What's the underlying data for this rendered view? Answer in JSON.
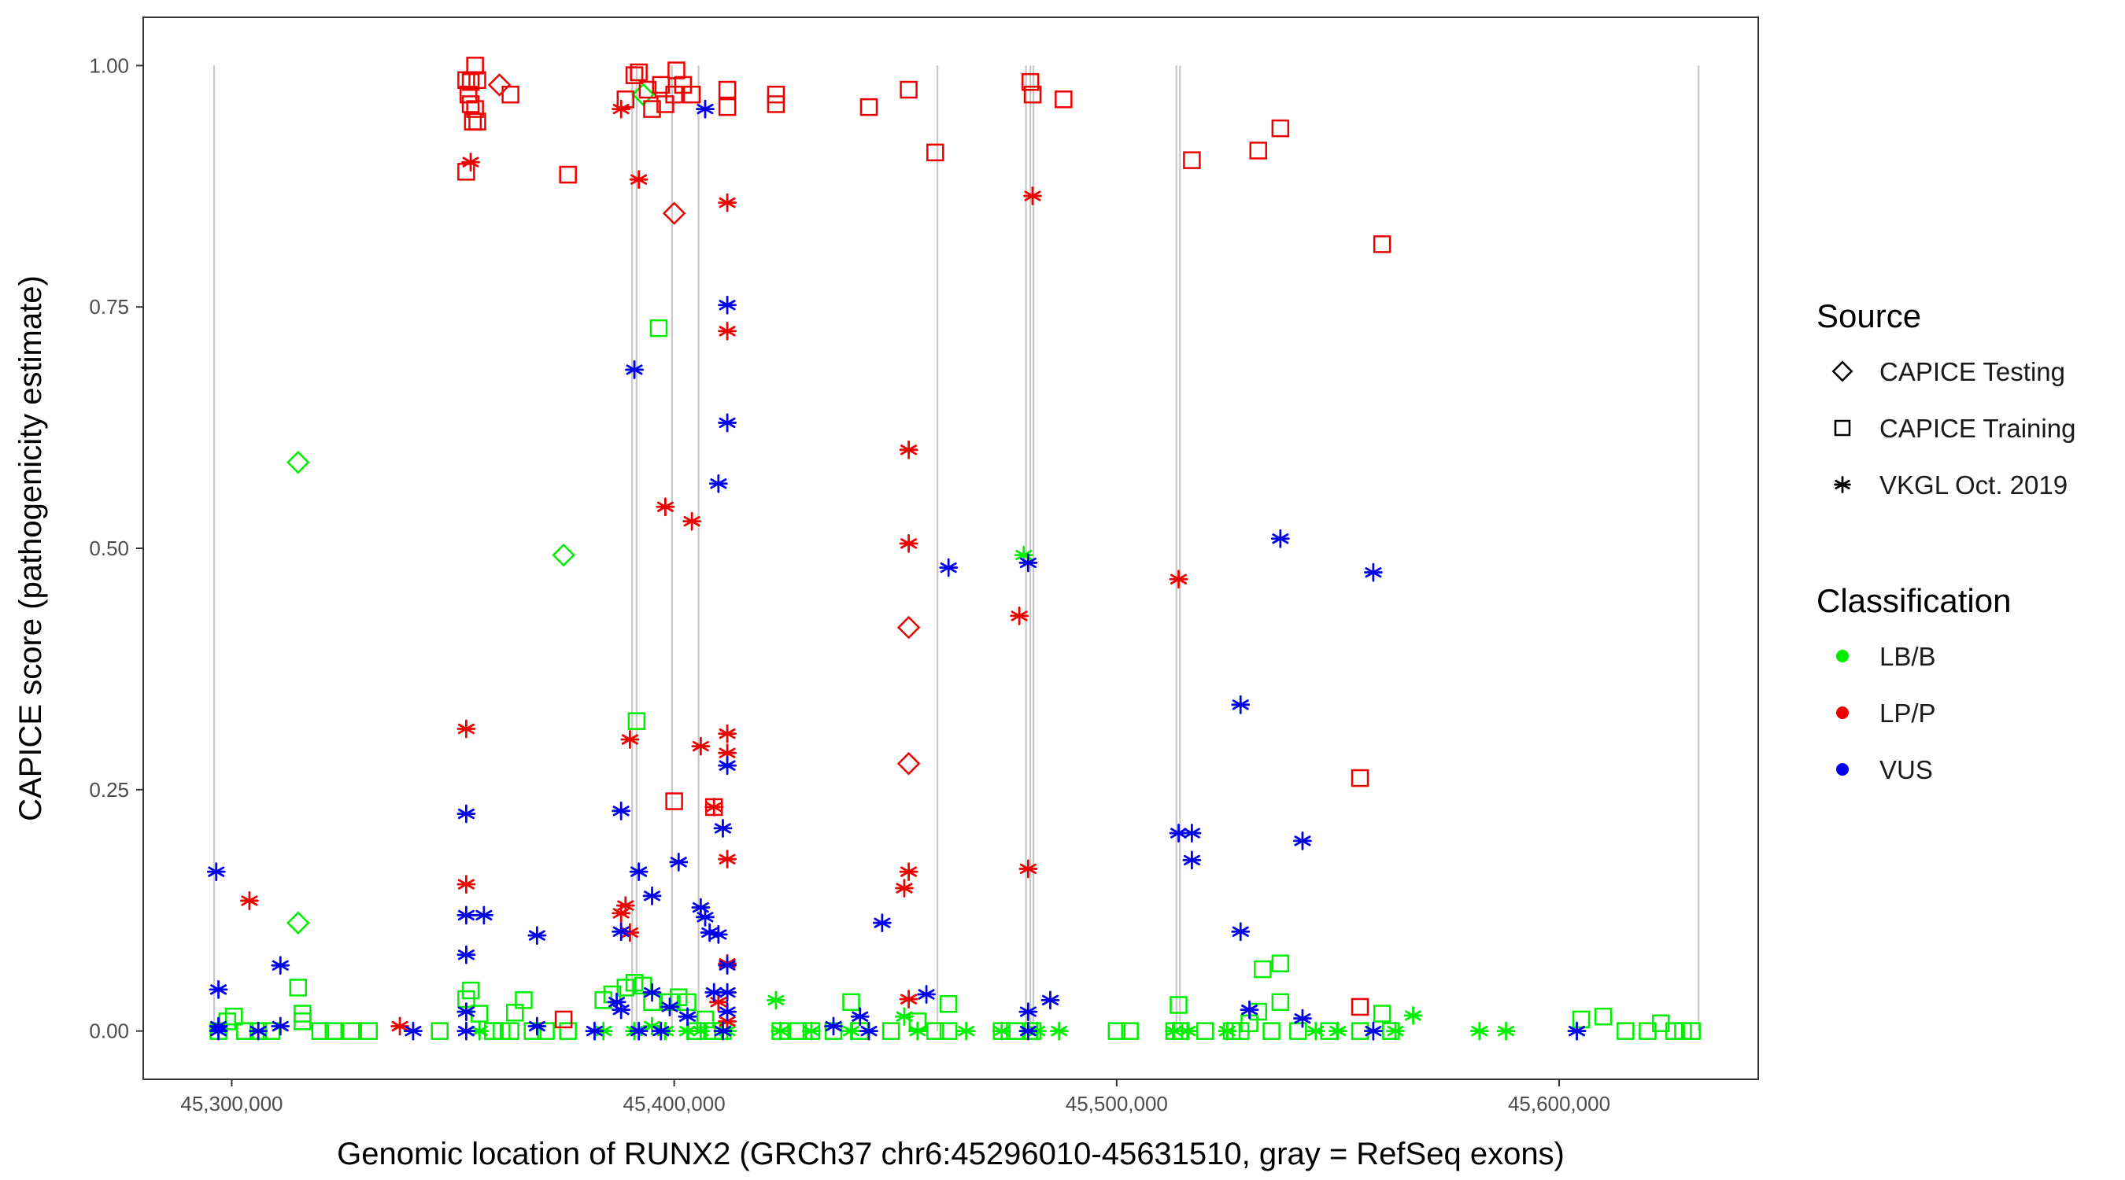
{
  "chart_data": {
    "type": "scatter",
    "title": "",
    "xlabel": "Genomic location of RUNX2 (GRCh37 chr6:45296010-45631510, gray = RefSeq exons)",
    "ylabel": "CAPICE score (pathogenicity estimate)",
    "xlim": [
      45280000,
      45645000
    ],
    "ylim": [
      -0.05,
      1.05
    ],
    "x_ticks": [
      45300000,
      45400000,
      45500000,
      45600000
    ],
    "x_tick_labels": [
      "45,300,000",
      "45,400,000",
      "45,500,000",
      "45,600,000"
    ],
    "y_ticks": [
      0,
      0.25,
      0.5,
      0.75,
      1.0
    ],
    "y_tick_labels": [
      "0.00",
      "0.25",
      "0.50",
      "0.75",
      "1.00"
    ],
    "grid": false,
    "exons": [
      45296010,
      45390500,
      45391500,
      45399500,
      45405500,
      45459500,
      45479500,
      45480500,
      45481200,
      45513500,
      45514300,
      45631510
    ],
    "legend": {
      "source": {
        "title": "Source",
        "entries": [
          {
            "label": "CAPICE Testing",
            "shape": "diamond"
          },
          {
            "label": "CAPICE Training",
            "shape": "square"
          },
          {
            "label": "VKGL Oct. 2019",
            "shape": "asterisk"
          }
        ]
      },
      "classification": {
        "title": "Classification",
        "entries": [
          {
            "label": "LB/B",
            "color": "#00ee00"
          },
          {
            "label": "LP/P",
            "color": "#ee0000"
          },
          {
            "label": "VUS",
            "color": "#0000ee"
          }
        ]
      }
    },
    "series": [
      {
        "source": "CAPICE Testing",
        "shape": "diamond",
        "classification": "LB/B",
        "points": [
          [
            45315000,
            0.589
          ],
          [
            45315000,
            0.112
          ],
          [
            45375000,
            0.493
          ],
          [
            45393000,
            0.97
          ]
        ]
      },
      {
        "source": "CAPICE Testing",
        "shape": "diamond",
        "classification": "LP/P",
        "points": [
          [
            45360500,
            0.98
          ],
          [
            45400000,
            0.847
          ],
          [
            45453000,
            0.418
          ],
          [
            45453000,
            0.277
          ]
        ]
      },
      {
        "source": "CAPICE Training",
        "shape": "square",
        "classification": "LB/B",
        "points": [
          [
            45297000,
            0.0
          ],
          [
            45299000,
            0.01
          ],
          [
            45300500,
            0.015
          ],
          [
            45303000,
            0.0
          ],
          [
            45306000,
            0.0
          ],
          [
            45309000,
            0.0
          ],
          [
            45315000,
            0.045
          ],
          [
            45316000,
            0.018
          ],
          [
            45316000,
            0.01
          ],
          [
            45320000,
            0.0
          ],
          [
            45323000,
            0.0
          ],
          [
            45327000,
            0.0
          ],
          [
            45331000,
            0.0
          ],
          [
            45347000,
            0.0
          ],
          [
            45353000,
            0.033
          ],
          [
            45354000,
            0.042
          ],
          [
            45356000,
            0.018
          ],
          [
            45359000,
            0.0
          ],
          [
            45361000,
            0.0
          ],
          [
            45363000,
            0.0
          ],
          [
            45364000,
            0.019
          ],
          [
            45366000,
            0.032
          ],
          [
            45368000,
            0.0
          ],
          [
            45371000,
            0.0
          ],
          [
            45376000,
            0.0
          ],
          [
            45384000,
            0.032
          ],
          [
            45386000,
            0.038
          ],
          [
            45389000,
            0.045
          ],
          [
            45391000,
            0.05
          ],
          [
            45391500,
            0.321
          ],
          [
            45393000,
            0.047
          ],
          [
            45395000,
            0.03
          ],
          [
            45396500,
            0.728
          ],
          [
            45399000,
            0.03
          ],
          [
            45401000,
            0.035
          ],
          [
            45403000,
            0.03
          ],
          [
            45405000,
            0.0
          ],
          [
            45407000,
            0.012
          ],
          [
            45409000,
            0.0
          ],
          [
            45411000,
            0.0
          ],
          [
            45424000,
            0.0
          ],
          [
            45428000,
            0.0
          ],
          [
            45431000,
            0.0
          ],
          [
            45436000,
            0.0
          ],
          [
            45440000,
            0.03
          ],
          [
            45442000,
            0.0
          ],
          [
            45449000,
            0.0
          ],
          [
            45455000,
            0.01
          ],
          [
            45459000,
            0.0
          ],
          [
            45462000,
            0.0
          ],
          [
            45462000,
            0.028
          ],
          [
            45474000,
            0.0
          ],
          [
            45477000,
            0.0
          ],
          [
            45481000,
            0.0
          ],
          [
            45500000,
            0.0
          ],
          [
            45503000,
            0.0
          ],
          [
            45513000,
            0.0
          ],
          [
            45514000,
            0.027
          ],
          [
            45514500,
            0.0
          ],
          [
            45520000,
            0.0
          ],
          [
            45526000,
            0.0
          ],
          [
            45528000,
            0.0
          ],
          [
            45530000,
            0.008
          ],
          [
            45532000,
            0.02
          ],
          [
            45533000,
            0.064
          ],
          [
            45535000,
            0.0
          ],
          [
            45537000,
            0.07
          ],
          [
            45537000,
            0.03
          ],
          [
            45541000,
            0.0
          ],
          [
            45548000,
            0.0
          ],
          [
            45555000,
            0.0
          ],
          [
            45560000,
            0.018
          ],
          [
            45562000,
            0.0
          ],
          [
            45605000,
            0.012
          ],
          [
            45610000,
            0.015
          ],
          [
            45615000,
            0.0
          ],
          [
            45620000,
            0.0
          ],
          [
            45623000,
            0.008
          ],
          [
            45626000,
            0.0
          ],
          [
            45628000,
            0.0
          ],
          [
            45630000,
            0.0
          ]
        ]
      },
      {
        "source": "CAPICE Training",
        "shape": "square",
        "classification": "LP/P",
        "points": [
          [
            45353000,
            0.985
          ],
          [
            45354000,
            0.983
          ],
          [
            45355000,
            1.0
          ],
          [
            45355500,
            0.985
          ],
          [
            45353500,
            0.97
          ],
          [
            45354000,
            0.96
          ],
          [
            45355000,
            0.955
          ],
          [
            45354500,
            0.942
          ],
          [
            45355500,
            0.942
          ],
          [
            45353000,
            0.89
          ],
          [
            45363000,
            0.97
          ],
          [
            45376000,
            0.887
          ],
          [
            45375000,
            0.012
          ],
          [
            45389000,
            0.965
          ],
          [
            45391000,
            0.99
          ],
          [
            45392000,
            0.993
          ],
          [
            45394000,
            0.975
          ],
          [
            45395000,
            0.955
          ],
          [
            45397000,
            0.98
          ],
          [
            45398000,
            0.96
          ],
          [
            45400000,
            0.97
          ],
          [
            45400500,
            0.995
          ],
          [
            45402000,
            0.98
          ],
          [
            45404000,
            0.97
          ],
          [
            45412000,
            0.975
          ],
          [
            45412000,
            0.957
          ],
          [
            45400000,
            0.238
          ],
          [
            45409000,
            0.232
          ],
          [
            45423000,
            0.97
          ],
          [
            45423000,
            0.96
          ],
          [
            45444000,
            0.957
          ],
          [
            45453000,
            0.975
          ],
          [
            45459000,
            0.91
          ],
          [
            45480500,
            0.983
          ],
          [
            45481000,
            0.97
          ],
          [
            45488000,
            0.965
          ],
          [
            45517000,
            0.902
          ],
          [
            45532000,
            0.912
          ],
          [
            45537000,
            0.935
          ],
          [
            45555000,
            0.262
          ],
          [
            45560000,
            0.815
          ],
          [
            45555000,
            0.025
          ]
        ]
      },
      {
        "source": "VKGL Oct. 2019",
        "shape": "asterisk",
        "classification": "LB/B",
        "points": [
          [
            45297000,
            0.003
          ],
          [
            45353000,
            0.02
          ],
          [
            45356000,
            0.0
          ],
          [
            45384000,
            0.0
          ],
          [
            45391000,
            0.0
          ],
          [
            45395000,
            0.005
          ],
          [
            45398000,
            0.0
          ],
          [
            45403000,
            0.0
          ],
          [
            45406000,
            0.0
          ],
          [
            45412000,
            0.0
          ],
          [
            45423000,
            0.032
          ],
          [
            45424000,
            0.0
          ],
          [
            45431000,
            0.0
          ],
          [
            45440000,
            0.0
          ],
          [
            45452000,
            0.015
          ],
          [
            45455000,
            0.0
          ],
          [
            45466000,
            0.0
          ],
          [
            45474000,
            0.0
          ],
          [
            45479000,
            0.493
          ],
          [
            45482000,
            0.0
          ],
          [
            45487000,
            0.0
          ],
          [
            45513000,
            0.0
          ],
          [
            45516000,
            0.0
          ],
          [
            45525000,
            0.0
          ],
          [
            45545000,
            0.0
          ],
          [
            45550000,
            0.0
          ],
          [
            45563000,
            0.0
          ],
          [
            45567000,
            0.016
          ],
          [
            45582000,
            0.0
          ],
          [
            45588000,
            0.0
          ],
          [
            45604000,
            0.0
          ]
        ]
      },
      {
        "source": "VKGL Oct. 2019",
        "shape": "asterisk",
        "classification": "LP/P",
        "points": [
          [
            45304000,
            0.135
          ],
          [
            45338000,
            0.005
          ],
          [
            45353000,
            0.313
          ],
          [
            45353000,
            0.152
          ],
          [
            45354000,
            0.9
          ],
          [
            45388000,
            0.955
          ],
          [
            45388000,
            0.122
          ],
          [
            45389000,
            0.13
          ],
          [
            45390000,
            0.302
          ],
          [
            45390000,
            0.102
          ],
          [
            45392000,
            0.882
          ],
          [
            45398000,
            0.543
          ],
          [
            45404000,
            0.528
          ],
          [
            45406000,
            0.295
          ],
          [
            45409000,
            0.232
          ],
          [
            45410000,
            0.03
          ],
          [
            45412000,
            0.858
          ],
          [
            45412000,
            0.725
          ],
          [
            45412000,
            0.308
          ],
          [
            45412000,
            0.288
          ],
          [
            45412000,
            0.178
          ],
          [
            45412000,
            0.07
          ],
          [
            45412000,
            0.01
          ],
          [
            45453000,
            0.602
          ],
          [
            45453000,
            0.505
          ],
          [
            45453000,
            0.165
          ],
          [
            45452000,
            0.148
          ],
          [
            45453000,
            0.033
          ],
          [
            45478000,
            0.43
          ],
          [
            45481000,
            0.865
          ],
          [
            45480000,
            0.168
          ],
          [
            45514000,
            0.468
          ]
        ]
      },
      {
        "source": "VKGL Oct. 2019",
        "shape": "asterisk",
        "classification": "VUS",
        "points": [
          [
            45296500,
            0.165
          ],
          [
            45297000,
            0.043
          ],
          [
            45297000,
            0.005
          ],
          [
            45297000,
            0.0
          ],
          [
            45306000,
            0.0
          ],
          [
            45311000,
            0.068
          ],
          [
            45311000,
            0.005
          ],
          [
            45341000,
            0.0
          ],
          [
            45353000,
            0.225
          ],
          [
            45353000,
            0.12
          ],
          [
            45357000,
            0.12
          ],
          [
            45353000,
            0.079
          ],
          [
            45353000,
            0.02
          ],
          [
            45353000,
            0.0
          ],
          [
            45369000,
            0.099
          ],
          [
            45369000,
            0.005
          ],
          [
            45382000,
            0.0
          ],
          [
            45387000,
            0.03
          ],
          [
            45388000,
            0.228
          ],
          [
            45388000,
            0.103
          ],
          [
            45388000,
            0.022
          ],
          [
            45391000,
            0.685
          ],
          [
            45392000,
            0.165
          ],
          [
            45392000,
            0.0
          ],
          [
            45395000,
            0.14
          ],
          [
            45395000,
            0.04
          ],
          [
            45397000,
            0.0
          ],
          [
            45399000,
            0.025
          ],
          [
            45401000,
            0.175
          ],
          [
            45403000,
            0.015
          ],
          [
            45406000,
            0.128
          ],
          [
            45407000,
            0.955
          ],
          [
            45407000,
            0.118
          ],
          [
            45408000,
            0.102
          ],
          [
            45409000,
            0.04
          ],
          [
            45410000,
            0.567
          ],
          [
            45410000,
            0.1
          ],
          [
            45411000,
            0.21
          ],
          [
            45411000,
            0.0
          ],
          [
            45412000,
            0.752
          ],
          [
            45412000,
            0.63
          ],
          [
            45412000,
            0.275
          ],
          [
            45412000,
            0.068
          ],
          [
            45412000,
            0.04
          ],
          [
            45412000,
            0.02
          ],
          [
            45436000,
            0.005
          ],
          [
            45442000,
            0.015
          ],
          [
            45444000,
            0.0
          ],
          [
            45447000,
            0.112
          ],
          [
            45457000,
            0.038
          ],
          [
            45462000,
            0.48
          ],
          [
            45480000,
            0.485
          ],
          [
            45480000,
            0.02
          ],
          [
            45480000,
            0.0
          ],
          [
            45485000,
            0.032
          ],
          [
            45514000,
            0.205
          ],
          [
            45517000,
            0.205
          ],
          [
            45517000,
            0.177
          ],
          [
            45528000,
            0.338
          ],
          [
            45528000,
            0.103
          ],
          [
            45530000,
            0.022
          ],
          [
            45537000,
            0.51
          ],
          [
            45542000,
            0.197
          ],
          [
            45542000,
            0.013
          ],
          [
            45558000,
            0.475
          ],
          [
            45558000,
            0.0
          ],
          [
            45604000,
            0.0
          ]
        ]
      }
    ]
  }
}
